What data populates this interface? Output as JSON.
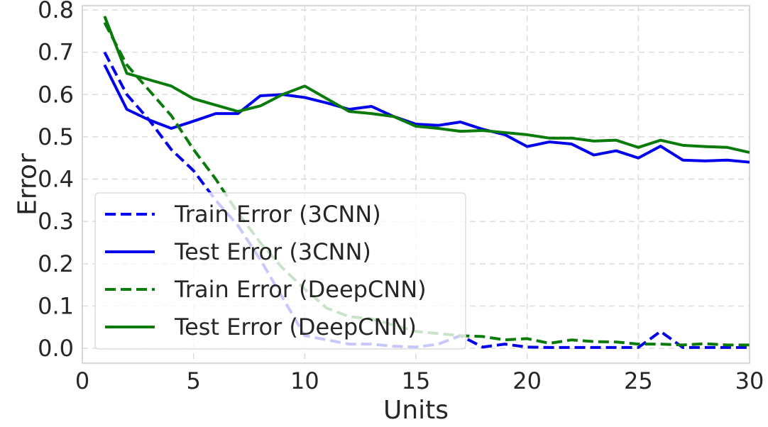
{
  "chart_data": {
    "type": "line",
    "xlabel": "Units",
    "ylabel": "Error",
    "xlim": [
      0,
      30
    ],
    "ylim": [
      -0.035,
      0.81
    ],
    "xticks": [
      0,
      5,
      10,
      15,
      20,
      25,
      30
    ],
    "yticks": [
      0.0,
      0.1,
      0.2,
      0.3,
      0.4,
      0.5,
      0.6,
      0.7,
      0.8
    ],
    "grid": true,
    "legend_position": "lower-left",
    "x": [
      1,
      2,
      3,
      4,
      5,
      6,
      7,
      8,
      9,
      10,
      11,
      12,
      13,
      14,
      15,
      16,
      17,
      18,
      19,
      20,
      21,
      22,
      23,
      24,
      25,
      26,
      27,
      28,
      29,
      30
    ],
    "series": [
      {
        "name": "Train Error (3CNN)",
        "color": "#0000ee",
        "dash": true,
        "values": [
          0.7,
          0.6,
          0.54,
          0.47,
          0.42,
          0.35,
          0.29,
          0.21,
          0.12,
          0.03,
          0.02,
          0.01,
          0.01,
          0.005,
          0.003,
          0.01,
          0.03,
          0.003,
          0.01,
          0.003,
          0.002,
          0.002,
          0.002,
          0.002,
          0.002,
          0.04,
          0.002,
          0.002,
          0.002,
          0.002
        ]
      },
      {
        "name": "Test Error (3CNN)",
        "color": "#0000ee",
        "dash": false,
        "values": [
          0.67,
          0.565,
          0.54,
          0.52,
          0.537,
          0.555,
          0.555,
          0.597,
          0.6,
          0.593,
          0.58,
          0.565,
          0.572,
          0.548,
          0.53,
          0.527,
          0.535,
          0.518,
          0.505,
          0.477,
          0.488,
          0.483,
          0.457,
          0.467,
          0.45,
          0.478,
          0.445,
          0.443,
          0.445,
          0.44
        ]
      },
      {
        "name": "Train Error (DeepCNN)",
        "color": "#0a7a0a",
        "dash": true,
        "values": [
          0.77,
          0.67,
          0.61,
          0.55,
          0.47,
          0.4,
          0.32,
          0.25,
          0.19,
          0.14,
          0.095,
          0.075,
          0.07,
          0.055,
          0.04,
          0.035,
          0.03,
          0.028,
          0.02,
          0.023,
          0.012,
          0.02,
          0.016,
          0.015,
          0.01,
          0.01,
          0.008,
          0.011,
          0.008,
          0.008
        ]
      },
      {
        "name": "Test Error (DeepCNN)",
        "color": "#0a7a0a",
        "dash": false,
        "values": [
          0.785,
          0.65,
          0.635,
          0.62,
          0.59,
          0.575,
          0.56,
          0.573,
          0.6,
          0.62,
          0.59,
          0.56,
          0.555,
          0.548,
          0.525,
          0.52,
          0.513,
          0.515,
          0.51,
          0.505,
          0.497,
          0.497,
          0.49,
          0.492,
          0.475,
          0.492,
          0.48,
          0.477,
          0.475,
          0.463
        ]
      }
    ]
  }
}
